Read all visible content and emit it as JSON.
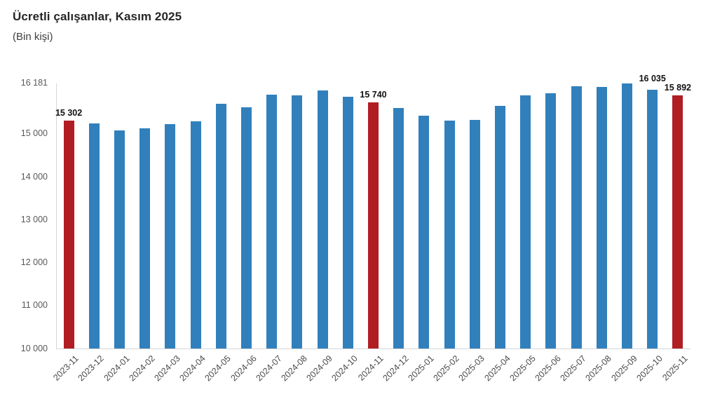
{
  "header": {
    "title": "Ücretli çalışanlar, Kasım 2025",
    "subtitle": "(Bin kişi)"
  },
  "chart_data": {
    "type": "bar",
    "title": "Ücretli çalışanlar, Kasım 2025",
    "subtitle": "(Bin kişi)",
    "unit": "Bin kişi",
    "categories": [
      "2023-11",
      "2023-12",
      "2024-01",
      "2024-02",
      "2024-03",
      "2024-04",
      "2024-05",
      "2024-06",
      "2024-07",
      "2024-08",
      "2024-09",
      "2024-10",
      "2024-11",
      "2024-12",
      "2025-01",
      "2025-02",
      "2025-03",
      "2025-04",
      "2025-05",
      "2025-06",
      "2025-07",
      "2025-08",
      "2025-09",
      "2025-10",
      "2025-11"
    ],
    "values": [
      15302,
      15245,
      15080,
      15135,
      15220,
      15295,
      15695,
      15615,
      15913,
      15902,
      16006,
      15869,
      15740,
      15598,
      15424,
      15305,
      15326,
      15658,
      15895,
      15950,
      16110,
      16100,
      16181,
      16035,
      15892
    ],
    "highlighted_categories": [
      "2023-11",
      "2024-11",
      "2025-11"
    ],
    "data_labels": [
      {
        "category": "2023-11",
        "label": "15 302"
      },
      {
        "category": "2024-11",
        "label": "15 740"
      },
      {
        "category": "2025-10",
        "label": "16 035"
      },
      {
        "category": "2025-11",
        "label": "15 892"
      }
    ],
    "y_ticks": [
      {
        "value": 16181,
        "label": "16 181"
      },
      {
        "value": 15000,
        "label": "15 000"
      },
      {
        "value": 14000,
        "label": "14 000"
      },
      {
        "value": 13000,
        "label": "13 000"
      },
      {
        "value": 12000,
        "label": "12 000"
      },
      {
        "value": 11000,
        "label": "11 000"
      },
      {
        "value": 10000,
        "label": "10 000"
      }
    ],
    "ylim": [
      10000,
      16181
    ],
    "xlabel": "",
    "ylabel": "",
    "grid": false,
    "legend": false,
    "colors": {
      "bar": "#3180BC",
      "highlight": "#B01E24",
      "axis": "#d6d6d6",
      "tick_text": "#58595b",
      "data_label_text": "#111111"
    }
  }
}
